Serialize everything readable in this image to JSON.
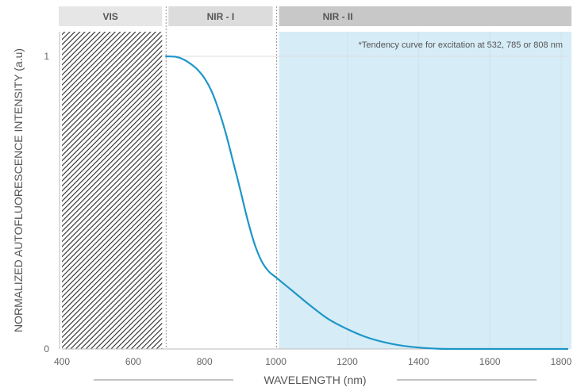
{
  "chart_data": {
    "type": "line",
    "title": "",
    "xlabel": "WAVELENGTH (nm)",
    "ylabel": "NORMALIZED AUTOFLUORESCENCE INTENSITY (a.u)",
    "xlim": [
      400,
      1820
    ],
    "ylim": [
      0,
      1
    ],
    "x_ticks": [
      "400",
      "600",
      "800",
      "1000",
      "1200",
      "1400",
      "1600",
      "1800"
    ],
    "y_ticks": [
      "0",
      "1"
    ],
    "bands": [
      {
        "label": "VIS",
        "range": [
          400,
          690
        ],
        "fill": "hatched"
      },
      {
        "label": "NIR - I",
        "range": [
          690,
          1000
        ],
        "fill": "none"
      },
      {
        "label": "NIR - II",
        "range": [
          1000,
          1820
        ],
        "fill": "#d6ecf6"
      }
    ],
    "annotation": "*Tendency curve for excitation at 532, 785 or 808 nm",
    "series": [
      {
        "color": "#1e96c8",
        "x": [
          690,
          720,
          740,
          760,
          780,
          800,
          820,
          840,
          860,
          880,
          900,
          920,
          940,
          960,
          980,
          1000,
          1050,
          1100,
          1150,
          1200,
          1250,
          1300,
          1350,
          1400,
          1450,
          1500,
          1600,
          1700,
          1820
        ],
        "y": [
          1.0,
          0.998,
          0.99,
          0.975,
          0.955,
          0.925,
          0.88,
          0.815,
          0.735,
          0.64,
          0.545,
          0.445,
          0.36,
          0.3,
          0.265,
          0.245,
          0.195,
          0.145,
          0.1,
          0.068,
          0.042,
          0.024,
          0.012,
          0.005,
          0.001,
          0.0,
          0.0,
          0.0,
          0.0
        ]
      }
    ],
    "colors": {
      "band_header_vis": "#e6e6e6",
      "band_header_nir1": "#dcdcdc",
      "band_header_nir2": "#c8c8c8",
      "nir2_fill": "#d6ecf6",
      "curve": "#1e96c8",
      "axis": "#bbbbbb",
      "grid": "#cfe3ee"
    }
  }
}
